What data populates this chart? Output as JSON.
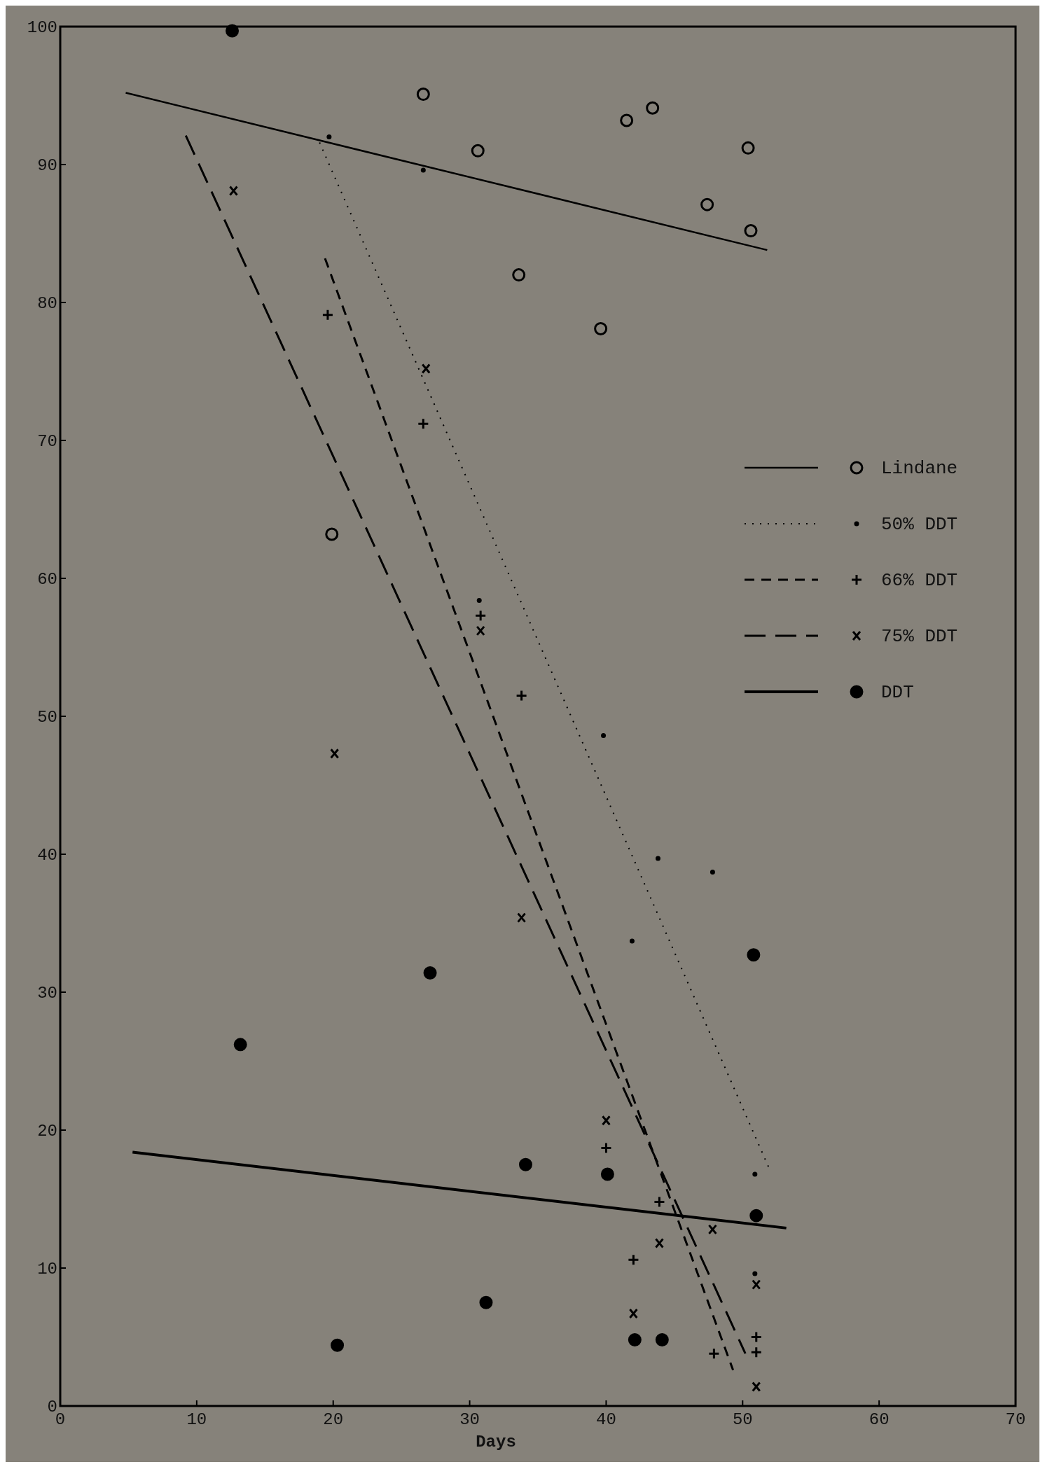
{
  "chart_data": {
    "type": "scatter",
    "xlabel": "Days",
    "xlim": [
      0,
      70
    ],
    "ylim": [
      0,
      100
    ],
    "xticks": [
      0,
      10,
      20,
      30,
      40,
      50,
      60,
      70
    ],
    "yticks": [
      0,
      10,
      20,
      30,
      40,
      50,
      60,
      70,
      80,
      90,
      100
    ],
    "legend": "right",
    "grid": false,
    "series": [
      {
        "name": "Lindane",
        "marker": "circle",
        "color": "#86827a",
        "x": [
          26.6,
          30.6,
          33.6,
          39.6,
          41.5,
          43.4,
          47.4,
          50.4,
          50.6,
          19.9
        ],
        "values": [
          95.1,
          91.0,
          82.0,
          78.1,
          93.2,
          94.1,
          87.1,
          91.2,
          85.2,
          63.2
        ]
      },
      {
        "name": "50% DDT",
        "color": "#000000",
        "x": [
          19.7,
          26.6,
          30.7,
          39.8,
          43.8,
          47.8,
          41.9,
          50.9,
          50.9
        ],
        "values": [
          92.0,
          89.6,
          58.4,
          48.6,
          39.7,
          38.7,
          33.7,
          16.8,
          9.6
        ]
      },
      {
        "name": "66% DDT",
        "marker": "cross",
        "color": "#000000",
        "x": [
          19.6,
          26.6,
          30.8,
          33.8,
          40.0,
          43.9,
          42.0,
          47.9,
          51.0,
          51.0
        ],
        "values": [
          79.1,
          71.2,
          57.3,
          51.5,
          18.7,
          14.8,
          10.6,
          3.8,
          5.0,
          3.9
        ]
      },
      {
        "name": "75% DDT",
        "marker": "cross",
        "color": "#000000",
        "x": [
          12.7,
          20.1,
          26.8,
          30.8,
          33.8,
          40.0,
          42.0,
          43.9,
          47.8,
          51.0,
          51.0
        ],
        "values": [
          88.1,
          47.3,
          75.2,
          56.2,
          35.4,
          20.7,
          6.7,
          11.8,
          12.8,
          8.8,
          1.4
        ]
      },
      {
        "name": "DDT",
        "marker": "circle",
        "color": "#000000",
        "x": [
          12.6,
          13.2,
          20.3,
          27.1,
          31.2,
          34.1,
          40.1,
          42.1,
          44.1,
          50.8,
          51.0
        ],
        "values": [
          99.7,
          26.2,
          4.4,
          31.4,
          7.5,
          17.5,
          16.8,
          4.8,
          4.8,
          32.7,
          13.8
        ]
      },
      {
        "type": "line",
        "line_style": "solid",
        "color": "#000000",
        "x": [
          4.8,
          51.8
        ],
        "values": [
          95.2,
          83.8
        ]
      },
      {
        "type": "line",
        "line_style": "dotted",
        "color": "#000000",
        "x": [
          19.0,
          52.0
        ],
        "values": [
          91.6,
          17.1
        ]
      },
      {
        "type": "line",
        "line_style": "dashed",
        "color": "#000000",
        "x": [
          19.4,
          49.3
        ],
        "values": [
          83.2,
          2.6
        ]
      },
      {
        "type": "line",
        "line_style": "dashed",
        "color": "#000000",
        "x": [
          9.2,
          50.2
        ],
        "values": [
          92.1,
          3.8
        ]
      },
      {
        "type": "line",
        "line_style": "solid",
        "color": "#000000",
        "x": [
          5.3,
          53.2
        ],
        "values": [
          18.4,
          12.9
        ]
      }
    ]
  }
}
